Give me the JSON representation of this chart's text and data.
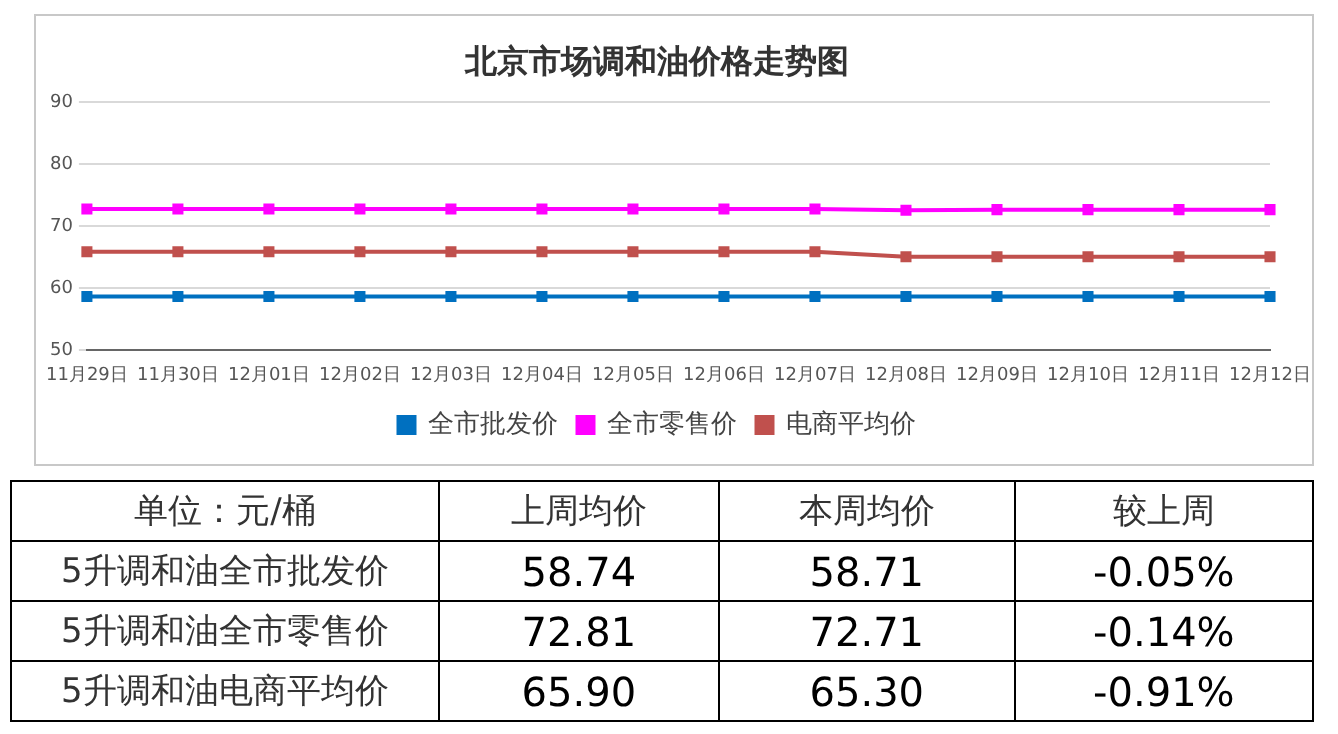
{
  "chart_data": {
    "type": "line",
    "title": "北京市场调和油价格走势图",
    "categories": [
      "11月29日",
      "11月30日",
      "12月01日",
      "12月02日",
      "12月03日",
      "12月04日",
      "12月05日",
      "12月06日",
      "12月07日",
      "12月08日",
      "12月09日",
      "12月10日",
      "12月11日",
      "12月12日"
    ],
    "series": [
      {
        "name": "全市批发价",
        "color": "#0070c0",
        "values": [
          58.7,
          58.7,
          58.7,
          58.7,
          58.7,
          58.7,
          58.7,
          58.7,
          58.7,
          58.7,
          58.7,
          58.7,
          58.7,
          58.7
        ]
      },
      {
        "name": "全市零售价",
        "color": "#ff00ff",
        "values": [
          72.8,
          72.8,
          72.8,
          72.8,
          72.8,
          72.8,
          72.8,
          72.8,
          72.8,
          72.6,
          72.7,
          72.7,
          72.7,
          72.7
        ]
      },
      {
        "name": "电商平均价",
        "color": "#c0504d",
        "values": [
          65.9,
          65.9,
          65.9,
          65.9,
          65.9,
          65.9,
          65.9,
          65.9,
          65.9,
          65.1,
          65.1,
          65.1,
          65.1,
          65.1
        ]
      }
    ],
    "ylim": [
      50,
      90
    ],
    "yticks": [
      50,
      60,
      70,
      80,
      90
    ],
    "grid": "y",
    "legend": "bottom",
    "marker": "square",
    "line_style": "solid",
    "annotations": [
      "单位：元/桶",
      "上周均价",
      "本周均价",
      "较上周",
      "5升调和油全市批发价",
      "58.74",
      "58.71",
      "-0.05%",
      "5升调和油全市零售价",
      "72.81",
      "72.71",
      "-0.14%",
      "5升调和油电商平均价",
      "65.90",
      "65.30",
      "-0.91%"
    ]
  }
}
